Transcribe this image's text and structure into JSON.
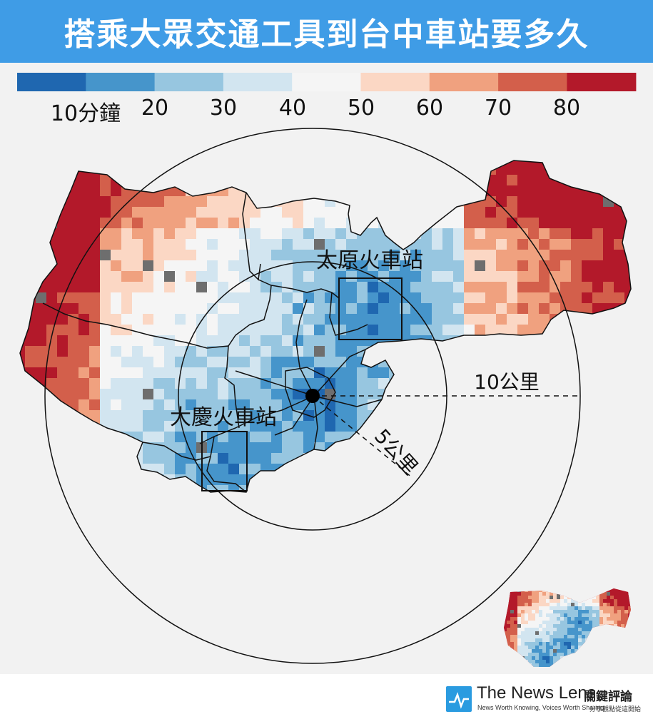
{
  "title": "搭乘大眾交通工具到台中車站要多久",
  "legend": {
    "colors": [
      "#1f67b0",
      "#4695cb",
      "#97c6e0",
      "#d2e5f0",
      "#f5f5f5",
      "#fbd7c4",
      "#f0a17f",
      "#d35f4b",
      "#b3192a"
    ],
    "labels": [
      "10分鐘",
      "20",
      "30",
      "40",
      "50",
      "60",
      "70",
      "80"
    ]
  },
  "map": {
    "stations": [
      "太原火車站",
      "大慶火車站"
    ],
    "rings": [
      "10公里",
      "5公里"
    ],
    "no_data_color": "#6e6e6e"
  },
  "brand": {
    "name": "The News Lens",
    "name_cjk": "關鍵評論",
    "tagline": "News Worth Knowing, Voices Worth Sharing",
    "tagline_cjk": "分享觀點從這開始"
  }
}
